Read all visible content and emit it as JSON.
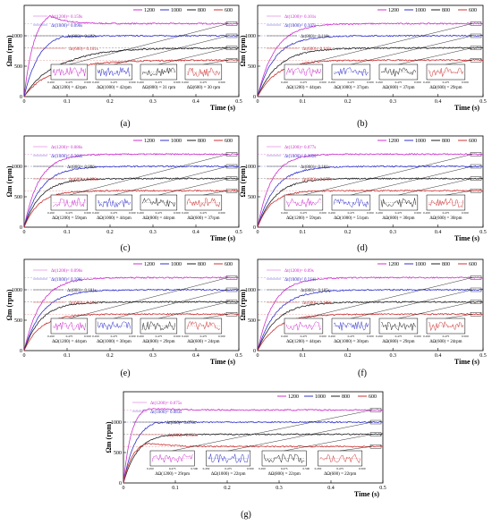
{
  "chart_data": [
    {
      "label": "(a)",
      "type": "line",
      "xlabel": "Time (s)",
      "ylabel": "Ωm (rpm)",
      "xlim": [
        0,
        0.5
      ],
      "ylim": [
        0,
        1500
      ],
      "xticks": [
        "0",
        "0.1",
        "0.2",
        "0.3",
        "0.4",
        "0.5"
      ],
      "yticks": [
        "500",
        "1000"
      ],
      "legend": [
        "1200",
        "1000",
        "800",
        "600"
      ],
      "series": [
        {
          "name": "1200",
          "color": "#cc33cc",
          "steady": 1200,
          "peak": 1430,
          "t_peak": 0.06
        },
        {
          "name": "1000",
          "color": "#3333cc",
          "steady": 1000,
          "peak": 1060,
          "t_peak": 0.09
        },
        {
          "name": "800",
          "color": "#222222",
          "steady": 800,
          "peak": 700,
          "t_peak": 0.18
        },
        {
          "name": "600",
          "color": "#cc3333",
          "steady": 600,
          "peak": 520,
          "t_peak": 0.16
        }
      ],
      "annotations": [
        "Δt(1200)= 0.159s",
        "Δt(1000)= 0.090s",
        "Δt(800)= 0.182s",
        "Δt(600)= 0.161s"
      ],
      "deltas": [
        "ΔΩ(1200) = 42rpm",
        "ΔΩ(1000) = 42rpm",
        "ΔΩ(800) = 31 rpm",
        "ΔΩ(600) = 30 rpm"
      ]
    },
    {
      "label": "(b)",
      "type": "line",
      "xlabel": "Time (s)",
      "ylabel": "Ωm (rpm)",
      "xlim": [
        0,
        0.5
      ],
      "ylim": [
        0,
        1500
      ],
      "xticks": [
        "0",
        "0.1",
        "0.2",
        "0.3",
        "0.4",
        "0.5"
      ],
      "yticks": [
        "500",
        "1000"
      ],
      "legend": [
        "1200",
        "1000",
        "800",
        "600"
      ],
      "series": [
        {
          "name": "1200",
          "color": "#cc33cc",
          "steady": 1200,
          "peak": 1210,
          "t_peak": 0.1
        },
        {
          "name": "1000",
          "color": "#3333cc",
          "steady": 1000,
          "peak": 1000,
          "t_peak": 0.1
        },
        {
          "name": "800",
          "color": "#222222",
          "steady": 800,
          "peak": 800,
          "t_peak": 0.12
        },
        {
          "name": "600",
          "color": "#cc3333",
          "steady": 600,
          "peak": 600,
          "t_peak": 0.11
        }
      ],
      "annotations": [
        "Δt(1200)= 0.101s",
        "Δt(1000)= 0.107s",
        "Δt(800)= 0.118s",
        "Δt(600)= 0.113s"
      ],
      "deltas": [
        "ΔΩ(1200) = 44rpm",
        "ΔΩ(1000) = 37rpm",
        "ΔΩ(800) = 37rpm",
        "ΔΩ(600) = 29rpm"
      ]
    },
    {
      "label": "(c)",
      "type": "line",
      "xlabel": "Time (s)",
      "ylabel": "Ωm (rpm)",
      "xlim": [
        0,
        0.5
      ],
      "ylim": [
        0,
        1500
      ],
      "xticks": [
        "0",
        "0.1",
        "0.2",
        "0.3",
        "0.4",
        "0.5"
      ],
      "yticks": [
        "500",
        "1000"
      ],
      "legend": [
        "1200",
        "1000",
        "800",
        "600"
      ],
      "series": [
        {
          "name": "1200",
          "color": "#cc33cc",
          "steady": 1200,
          "peak": 1200,
          "t_peak": 0.09
        },
        {
          "name": "1000",
          "color": "#3333cc",
          "steady": 1000,
          "peak": 1000,
          "t_peak": 0.1
        },
        {
          "name": "800",
          "color": "#222222",
          "steady": 800,
          "peak": 800,
          "t_peak": 0.1
        },
        {
          "name": "600",
          "color": "#cc3333",
          "steady": 600,
          "peak": 600,
          "t_peak": 0.09
        }
      ],
      "annotations": [
        "Δt(1200)= 0.086s",
        "Δt(1000)= 0.104s",
        "Δt(800)= 0.096s",
        "Δt(600)= 0.090s"
      ],
      "deltas": [
        "ΔΩ(1200) = 59rpm",
        "ΔΩ(1000) = 44rpm",
        "ΔΩ(800) = 44rpm",
        "ΔΩ(600) = 37rpm"
      ]
    },
    {
      "label": "(d)",
      "type": "line",
      "xlabel": "Time (s)",
      "ylabel": "Ωm (rpm)",
      "xlim": [
        0,
        0.5
      ],
      "ylim": [
        0,
        1500
      ],
      "xticks": [
        "0",
        "0.1",
        "0.2",
        "0.3",
        "0.4",
        "0.5"
      ],
      "yticks": [
        "500",
        "1000"
      ],
      "legend": [
        "1200",
        "1000",
        "800",
        "600"
      ],
      "series": [
        {
          "name": "1200",
          "color": "#cc33cc",
          "steady": 1200,
          "peak": 1200,
          "t_peak": 0.08
        },
        {
          "name": "1000",
          "color": "#3333cc",
          "steady": 1000,
          "peak": 1000,
          "t_peak": 0.1
        },
        {
          "name": "800",
          "color": "#222222",
          "steady": 800,
          "peak": 800,
          "t_peak": 0.1
        },
        {
          "name": "600",
          "color": "#cc3333",
          "steady": 600,
          "peak": 600,
          "t_peak": 0.08
        }
      ],
      "annotations": [
        "Δt(1200)= 0.077s",
        "Δt(1000)= 0.102s",
        "Δt(800)= 0.101s",
        "Δt(600)= 0.077s"
      ],
      "deltas": [
        "ΔΩ(1200) = 59rpm",
        "ΔΩ(1000) = 51rpm",
        "ΔΩ(800) = 30rpm",
        "ΔΩ(600) = 30rpm"
      ]
    },
    {
      "label": "(e)",
      "type": "line",
      "xlabel": "Time (s)",
      "ylabel": "Ωm (rpm)",
      "xlim": [
        0,
        0.5
      ],
      "ylim": [
        0,
        1500
      ],
      "xticks": [
        "0",
        "0.1",
        "0.2",
        "0.3",
        "0.4",
        "0.5"
      ],
      "yticks": [
        "500",
        "1000"
      ],
      "legend": [
        "1200",
        "1000",
        "800",
        "600"
      ],
      "series": [
        {
          "name": "1200",
          "color": "#cc33cc",
          "steady": 1200,
          "peak": 1200,
          "t_peak": 0.1
        },
        {
          "name": "1000",
          "color": "#3333cc",
          "steady": 1000,
          "peak": 1000,
          "t_peak": 0.11
        },
        {
          "name": "800",
          "color": "#222222",
          "steady": 800,
          "peak": 800,
          "t_peak": 0.1
        },
        {
          "name": "600",
          "color": "#cc3333",
          "steady": 600,
          "peak": 600,
          "t_peak": 0.1
        }
      ],
      "annotations": [
        "Δt(1200)= 0.096s",
        "Δt(1000)= 0.108s",
        "Δt(800)= 0.101s",
        "Δt(600)= 0.101s"
      ],
      "deltas": [
        "ΔΩ(1200) = 44rpm",
        "ΔΩ(1000) = 30rpm",
        "ΔΩ(800) = 29rpm",
        "ΔΩ(600) = 24rpm"
      ]
    },
    {
      "label": "(f)",
      "type": "line",
      "xlabel": "Time (s)",
      "ylabel": "Ωm (rpm)",
      "xlim": [
        0,
        0.5
      ],
      "ylim": [
        0,
        1500
      ],
      "xticks": [
        "0",
        "0.1",
        "0.2",
        "0.3",
        "0.4",
        "0.5"
      ],
      "yticks": [
        "500",
        "1000"
      ],
      "legend": [
        "1200",
        "1000",
        "800",
        "600"
      ],
      "series": [
        {
          "name": "1200",
          "color": "#cc33cc",
          "steady": 1200,
          "peak": 1200,
          "t_peak": 0.09
        },
        {
          "name": "1000",
          "color": "#3333cc",
          "steady": 1000,
          "peak": 1000,
          "t_peak": 0.11
        },
        {
          "name": "800",
          "color": "#222222",
          "steady": 800,
          "peak": 800,
          "t_peak": 0.11
        },
        {
          "name": "600",
          "color": "#cc3333",
          "steady": 600,
          "peak": 600,
          "t_peak": 0.11
        }
      ],
      "annotations": [
        "Δt(1200)= 0.09s",
        "Δt(1000)= 0.114s",
        "Δt(800)= 0.105s",
        "Δt(600)= 0.108s"
      ],
      "deltas": [
        "ΔΩ(1200) = 44rpm",
        "ΔΩ(1000) = 30rpm",
        "ΔΩ(800) = 29rpm",
        "ΔΩ(600) = 24rpm"
      ]
    },
    {
      "label": "(g)",
      "type": "line",
      "xlabel": "Time (s)",
      "ylabel": "Ωm (rpm)",
      "xlim": [
        0,
        0.5
      ],
      "ylim": [
        0,
        1500
      ],
      "xticks": [
        "0",
        "0.1",
        "0.2",
        "0.3",
        "0.4",
        "0.5"
      ],
      "yticks": [
        "500",
        "1000"
      ],
      "legend": [
        "1200",
        "1000",
        "800",
        "600"
      ],
      "series": [
        {
          "name": "1200",
          "color": "#cc33cc",
          "steady": 1200,
          "peak": 1290,
          "t_peak": 0.04
        },
        {
          "name": "1000",
          "color": "#3333cc",
          "steady": 1000,
          "peak": 1060,
          "t_peak": 0.06
        },
        {
          "name": "800",
          "color": "#222222",
          "steady": 800,
          "peak": 820,
          "t_peak": 0.07
        },
        {
          "name": "600",
          "color": "#cc3333",
          "steady": 600,
          "peak": 700,
          "t_peak": 0.045
        }
      ],
      "annotations": [
        "Δt(1200)= 0.075s",
        "Δt(1000)= 0.083s",
        "Δt(800)= 0.070s",
        "Δt(600)= 0.055s"
      ],
      "deltas": [
        "ΔΩ(1200) = 29rpm",
        "ΔΩ(1000) = 22rpm",
        "ΔΩ(800) = 22rpm",
        "ΔΩ(600) = 22rpm"
      ]
    }
  ],
  "colors": {
    "c1200": "#cc33cc",
    "c1000": "#3333cc",
    "c800": "#222222",
    "c600": "#cc3333"
  }
}
